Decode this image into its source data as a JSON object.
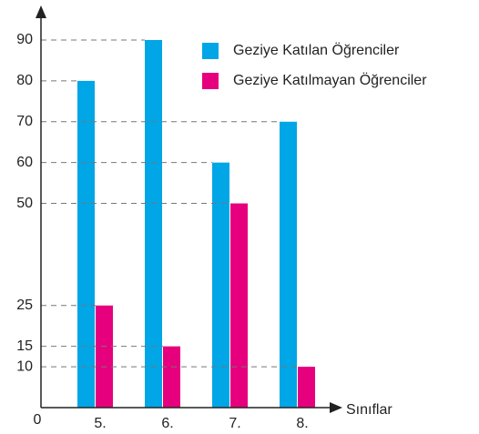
{
  "chart_data": {
    "type": "bar",
    "x_label": "Sınıflar",
    "categories": [
      "5.",
      "6.",
      "7.",
      "8."
    ],
    "series": [
      {
        "name": "Geziye Katılan Öğrenciler",
        "color": "#00a6e6",
        "values": [
          80,
          90,
          60,
          70
        ]
      },
      {
        "name": "Geziye Katılmayan Öğrenciler",
        "color": "#e6007e",
        "values": [
          25,
          15,
          50,
          10
        ]
      }
    ],
    "ylim": [
      0,
      90
    ],
    "yticks": [
      0,
      10,
      15,
      25,
      50,
      60,
      70,
      80,
      90
    ],
    "grid": true,
    "legend": "upper right"
  }
}
